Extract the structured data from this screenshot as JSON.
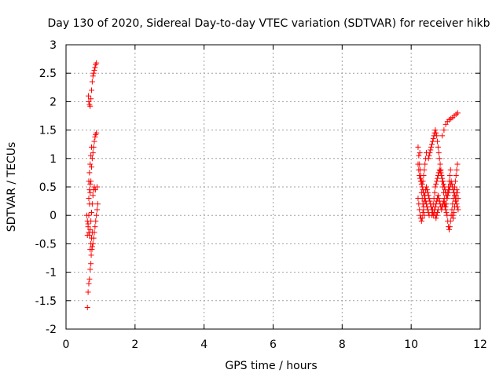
{
  "chart_data": {
    "type": "scatter",
    "title": "Day 130 of 2020, Sidereal Day-to-day VTEC variation (SDTVAR) for receiver hikb",
    "xlabel": "GPS time / hours",
    "ylabel": "SDTVAR / TECUs",
    "xlim": [
      0,
      12
    ],
    "ylim": [
      -2,
      3
    ],
    "x_ticks": [
      "0",
      "2",
      "4",
      "6",
      "8",
      "10",
      "12"
    ],
    "y_ticks": [
      "3",
      "2.5",
      "2",
      "1.5",
      "1",
      "0.5",
      "0",
      "-0.5",
      "-1",
      "-1.5",
      "-2"
    ],
    "grid": true,
    "marker": "+",
    "color": "#ff0000",
    "series": [
      {
        "points": [
          [
            0.62,
            -1.62
          ],
          [
            0.64,
            -1.35
          ],
          [
            0.66,
            -1.2
          ],
          [
            0.68,
            -1.12
          ],
          [
            0.7,
            -0.95
          ],
          [
            0.72,
            -0.85
          ],
          [
            0.73,
            -0.7
          ],
          [
            0.75,
            -0.6
          ],
          [
            0.76,
            -0.55
          ],
          [
            0.78,
            -0.5
          ],
          [
            0.8,
            -0.4
          ],
          [
            0.82,
            -0.3
          ],
          [
            0.84,
            -0.2
          ],
          [
            0.86,
            -0.1
          ],
          [
            0.88,
            0.0
          ],
          [
            0.9,
            0.1
          ],
          [
            0.92,
            0.2
          ],
          [
            0.62,
            -0.1
          ],
          [
            0.64,
            -0.2
          ],
          [
            0.66,
            -0.3
          ],
          [
            0.68,
            -0.35
          ],
          [
            0.7,
            -0.25
          ],
          [
            0.72,
            -0.1
          ],
          [
            0.74,
            0.05
          ],
          [
            0.76,
            0.2
          ],
          [
            0.78,
            0.35
          ],
          [
            0.8,
            0.45
          ],
          [
            0.82,
            0.5
          ],
          [
            0.85,
            0.45
          ],
          [
            0.62,
            -0.35
          ],
          [
            0.64,
            -0.15
          ],
          [
            0.66,
            0.0
          ],
          [
            0.68,
            0.2
          ],
          [
            0.7,
            0.4
          ],
          [
            0.72,
            0.6
          ],
          [
            0.74,
            0.85
          ],
          [
            0.76,
            1.0
          ],
          [
            0.78,
            1.1
          ],
          [
            0.8,
            1.2
          ],
          [
            0.82,
            1.3
          ],
          [
            0.84,
            1.38
          ],
          [
            0.86,
            1.42
          ],
          [
            0.88,
            1.45
          ],
          [
            0.66,
            0.6
          ],
          [
            0.68,
            0.75
          ],
          [
            0.7,
            0.9
          ],
          [
            0.72,
            1.05
          ],
          [
            0.74,
            1.2
          ],
          [
            0.65,
            2.1
          ],
          [
            0.66,
            2.0
          ],
          [
            0.68,
            1.95
          ],
          [
            0.7,
            1.92
          ],
          [
            0.72,
            2.05
          ],
          [
            0.74,
            2.2
          ],
          [
            0.76,
            2.35
          ],
          [
            0.78,
            2.45
          ],
          [
            0.8,
            2.5
          ],
          [
            0.82,
            2.55
          ],
          [
            0.84,
            2.6
          ],
          [
            0.86,
            2.65
          ],
          [
            0.88,
            2.68
          ],
          [
            0.7,
            -0.6
          ],
          [
            0.72,
            -0.5
          ],
          [
            0.74,
            -0.4
          ],
          [
            0.76,
            -0.3
          ],
          [
            0.66,
            0.3
          ],
          [
            0.68,
            0.45
          ],
          [
            0.7,
            0.55
          ],
          [
            0.6,
            0.0
          ],
          [
            0.9,
            0.5
          ]
        ]
      },
      {
        "points": [
          [
            10.2,
            1.2
          ],
          [
            10.22,
            1.05
          ],
          [
            10.24,
            0.9
          ],
          [
            10.26,
            0.8
          ],
          [
            10.28,
            0.7
          ],
          [
            10.3,
            0.6
          ],
          [
            10.32,
            0.55
          ],
          [
            10.34,
            0.6
          ],
          [
            10.36,
            0.7
          ],
          [
            10.38,
            0.8
          ],
          [
            10.4,
            0.9
          ],
          [
            10.42,
            1.0
          ],
          [
            10.44,
            1.1
          ],
          [
            10.2,
            0.9
          ],
          [
            10.22,
            0.8
          ],
          [
            10.24,
            0.7
          ],
          [
            10.26,
            0.65
          ],
          [
            10.28,
            0.6
          ],
          [
            10.3,
            0.55
          ],
          [
            10.32,
            0.5
          ],
          [
            10.34,
            0.45
          ],
          [
            10.36,
            0.4
          ],
          [
            10.38,
            0.35
          ],
          [
            10.4,
            0.3
          ],
          [
            10.42,
            0.25
          ],
          [
            10.44,
            0.2
          ],
          [
            10.46,
            0.15
          ],
          [
            10.48,
            0.1
          ],
          [
            10.5,
            0.05
          ],
          [
            10.52,
            0.0
          ],
          [
            10.2,
            0.3
          ],
          [
            10.22,
            0.2
          ],
          [
            10.24,
            0.1
          ],
          [
            10.26,
            0.0
          ],
          [
            10.28,
            -0.05
          ],
          [
            10.3,
            -0.1
          ],
          [
            10.32,
            -0.05
          ],
          [
            10.34,
            0.05
          ],
          [
            10.36,
            0.15
          ],
          [
            10.38,
            0.25
          ],
          [
            10.4,
            0.35
          ],
          [
            10.42,
            0.45
          ],
          [
            10.44,
            0.5
          ],
          [
            10.46,
            0.45
          ],
          [
            10.48,
            0.4
          ],
          [
            10.5,
            0.35
          ],
          [
            10.52,
            0.3
          ],
          [
            10.54,
            0.25
          ],
          [
            10.56,
            0.2
          ],
          [
            10.58,
            0.15
          ],
          [
            10.6,
            0.1
          ],
          [
            10.62,
            0.05
          ],
          [
            10.64,
            0.0
          ],
          [
            10.66,
            0.05
          ],
          [
            10.68,
            0.1
          ],
          [
            10.7,
            0.15
          ],
          [
            10.72,
            0.2
          ],
          [
            10.74,
            0.25
          ],
          [
            10.76,
            0.3
          ],
          [
            10.78,
            0.35
          ],
          [
            10.8,
            0.3
          ],
          [
            10.82,
            0.25
          ],
          [
            10.84,
            0.2
          ],
          [
            10.86,
            0.15
          ],
          [
            10.88,
            0.1
          ],
          [
            10.9,
            0.15
          ],
          [
            10.92,
            0.2
          ],
          [
            10.94,
            0.25
          ],
          [
            10.96,
            0.2
          ],
          [
            10.98,
            0.15
          ],
          [
            11.0,
            0.1
          ],
          [
            11.02,
            0.05
          ],
          [
            11.04,
            0.0
          ],
          [
            11.06,
            -0.1
          ],
          [
            11.08,
            -0.2
          ],
          [
            11.1,
            -0.25
          ],
          [
            11.12,
            -0.2
          ],
          [
            11.14,
            -0.1
          ],
          [
            11.16,
            0.0
          ],
          [
            11.18,
            0.1
          ],
          [
            11.2,
            0.2
          ],
          [
            11.22,
            0.3
          ],
          [
            11.24,
            0.4
          ],
          [
            11.26,
            0.5
          ],
          [
            11.28,
            0.6
          ],
          [
            11.3,
            0.7
          ],
          [
            11.32,
            0.8
          ],
          [
            11.34,
            0.9
          ],
          [
            10.5,
            1.0
          ],
          [
            10.52,
            1.05
          ],
          [
            10.54,
            1.1
          ],
          [
            10.56,
            1.15
          ],
          [
            10.58,
            1.2
          ],
          [
            10.6,
            1.25
          ],
          [
            10.62,
            1.3
          ],
          [
            10.64,
            1.35
          ],
          [
            10.66,
            1.4
          ],
          [
            10.68,
            1.45
          ],
          [
            10.7,
            1.5
          ],
          [
            10.72,
            1.45
          ],
          [
            10.74,
            1.4
          ],
          [
            10.76,
            1.3
          ],
          [
            10.78,
            1.2
          ],
          [
            10.8,
            1.1
          ],
          [
            10.82,
            1.0
          ],
          [
            10.84,
            0.9
          ],
          [
            10.86,
            0.8
          ],
          [
            10.88,
            0.7
          ],
          [
            10.9,
            0.65
          ],
          [
            10.92,
            0.6
          ],
          [
            10.94,
            0.55
          ],
          [
            10.96,
            0.5
          ],
          [
            10.98,
            0.45
          ],
          [
            11.0,
            0.4
          ],
          [
            11.02,
            0.35
          ],
          [
            11.04,
            0.3
          ],
          [
            11.06,
            0.35
          ],
          [
            11.08,
            0.4
          ],
          [
            11.1,
            0.45
          ],
          [
            11.12,
            0.5
          ],
          [
            11.14,
            0.55
          ],
          [
            11.16,
            0.6
          ],
          [
            11.18,
            0.55
          ],
          [
            11.2,
            0.5
          ],
          [
            11.22,
            0.45
          ],
          [
            11.24,
            0.4
          ],
          [
            11.26,
            0.35
          ],
          [
            11.28,
            0.3
          ],
          [
            11.3,
            0.25
          ],
          [
            11.32,
            0.2
          ],
          [
            11.34,
            0.15
          ],
          [
            11.36,
            0.1
          ],
          [
            10.6,
            0.0
          ],
          [
            10.62,
            0.1
          ],
          [
            10.64,
            0.2
          ],
          [
            10.66,
            0.3
          ],
          [
            10.68,
            0.4
          ],
          [
            10.7,
            0.5
          ],
          [
            10.72,
            0.55
          ],
          [
            10.74,
            0.6
          ],
          [
            10.76,
            0.65
          ],
          [
            10.78,
            0.7
          ],
          [
            10.8,
            0.75
          ],
          [
            10.82,
            0.8
          ],
          [
            10.84,
            0.78
          ],
          [
            10.86,
            0.75
          ],
          [
            10.88,
            0.7
          ],
          [
            10.9,
            0.6
          ],
          [
            10.92,
            0.5
          ],
          [
            10.94,
            0.4
          ],
          [
            10.96,
            0.3
          ],
          [
            10.98,
            0.2
          ],
          [
            11.0,
            0.15
          ],
          [
            11.02,
            0.2
          ],
          [
            11.04,
            0.3
          ],
          [
            11.06,
            0.4
          ],
          [
            11.08,
            0.5
          ],
          [
            11.1,
            0.6
          ],
          [
            11.12,
            0.7
          ],
          [
            11.14,
            0.8
          ],
          [
            11.0,
            1.6
          ],
          [
            11.05,
            1.65
          ],
          [
            11.1,
            1.68
          ],
          [
            11.15,
            1.7
          ],
          [
            11.2,
            1.72
          ],
          [
            11.25,
            1.75
          ],
          [
            11.3,
            1.78
          ],
          [
            11.35,
            1.8
          ],
          [
            10.95,
            1.5
          ],
          [
            10.9,
            1.4
          ],
          [
            10.7,
            0.0
          ],
          [
            10.72,
            -0.05
          ],
          [
            10.74,
            0.0
          ],
          [
            10.76,
            0.05
          ],
          [
            10.78,
            0.1
          ],
          [
            10.3,
            0.4
          ],
          [
            10.32,
            0.3
          ],
          [
            10.34,
            0.2
          ],
          [
            10.36,
            0.1
          ],
          [
            10.38,
            0.0
          ],
          [
            11.2,
            0.0
          ],
          [
            11.22,
            -0.05
          ],
          [
            11.24,
            0.05
          ],
          [
            11.26,
            0.15
          ],
          [
            11.28,
            0.25
          ],
          [
            11.3,
            0.35
          ],
          [
            11.32,
            0.45
          ],
          [
            11.34,
            0.4
          ],
          [
            11.36,
            0.3
          ],
          [
            10.25,
            1.1
          ]
        ]
      }
    ]
  }
}
